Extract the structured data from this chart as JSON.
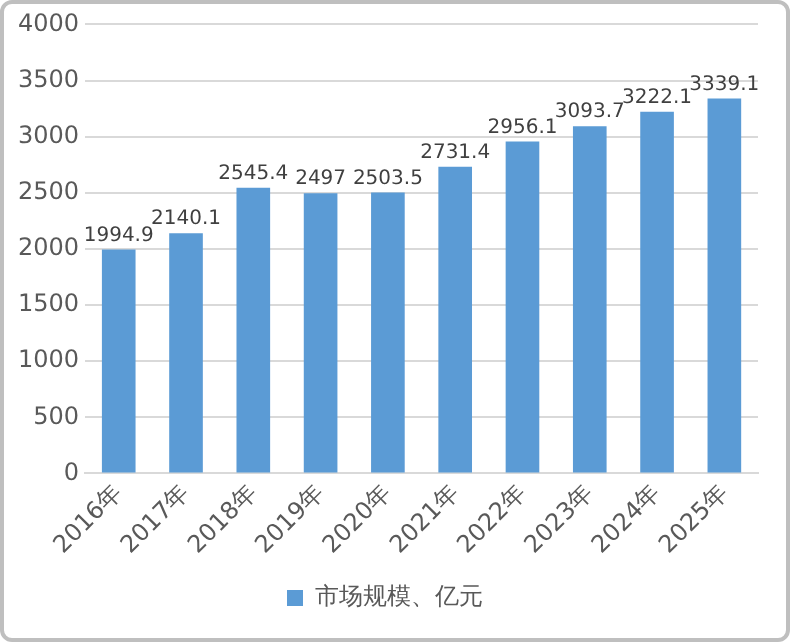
{
  "chart_data": {
    "type": "bar",
    "categories": [
      "2016年",
      "2017年",
      "2018年",
      "2019年",
      "2020年",
      "2021年",
      "2022年",
      "2023年",
      "2024年",
      "2025年"
    ],
    "series": [
      {
        "name": "市场规模、亿元",
        "color": "#5b9bd5",
        "values": [
          1994.9,
          2140.1,
          2545.4,
          2497,
          2503.5,
          2731.4,
          2956.1,
          3093.7,
          3222.1,
          3339.1
        ]
      }
    ],
    "ylim": [
      0,
      4000
    ],
    "yticks": [
      0,
      500,
      1000,
      1500,
      2000,
      2500,
      3000,
      3500,
      4000
    ],
    "grid": "y",
    "legend": "bottom",
    "data_labels": true
  }
}
